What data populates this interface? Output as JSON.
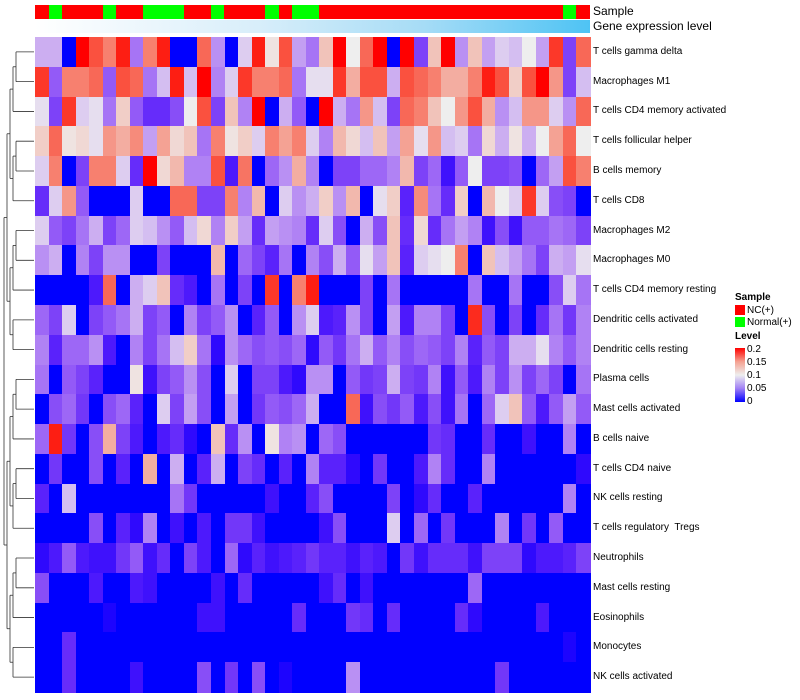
{
  "annotations": {
    "sample_label": "Sample",
    "gene_label": "Gene expression level",
    "samples": [
      "NC(+)",
      "Normal(+)",
      "NC(+)",
      "NC(+)",
      "NC(+)",
      "Normal(+)",
      "NC(+)",
      "NC(+)",
      "Normal(+)",
      "Normal(+)",
      "Normal(+)",
      "NC(+)",
      "NC(+)",
      "Normal(+)",
      "NC(+)",
      "NC(+)",
      "NC(+)",
      "Normal(+)",
      "NC(+)",
      "Normal(+)",
      "Normal(+)",
      "NC(+)",
      "NC(+)",
      "NC(+)",
      "NC(+)",
      "NC(+)",
      "NC(+)",
      "NC(+)",
      "NC(+)",
      "NC(+)",
      "NC(+)",
      "NC(+)",
      "NC(+)",
      "NC(+)",
      "NC(+)",
      "NC(+)",
      "NC(+)",
      "NC(+)",
      "NC(+)",
      "Normal(+)",
      "NC(+)"
    ]
  },
  "legend": {
    "sample_title": "Sample",
    "sample_items": [
      {
        "label": "NC(+)",
        "color": "#ff0000"
      },
      {
        "label": "Normal(+)",
        "color": "#00ff00"
      }
    ],
    "level_title": "Level",
    "level_ticks": [
      "0.2",
      "0.15",
      "0.1",
      "0.05",
      "0"
    ]
  },
  "chart_data": {
    "type": "heatmap",
    "title": "",
    "color_scale": {
      "min": 0,
      "mid": 0.1,
      "max": 0.2,
      "low": "#0000ff",
      "midcolor": "#eeeeee",
      "high": "#ff0000"
    },
    "rows": [
      "T cells gamma delta",
      "Macrophages M1",
      "T cells CD4 memory activated",
      "T cells follicular helper",
      "B cells memory",
      "T cells CD8",
      "Macrophages M2",
      "Macrophages M0",
      "T cells CD4 memory resting",
      "Dendritic cells activated",
      "Dendritic cells resting",
      "Plasma cells",
      "Mast cells activated",
      "B cells naive",
      "T cells CD4 naive",
      "NK cells resting",
      "T cells regulatory  Tregs",
      "Neutrophils",
      "Mast cells resting",
      "Eosinophils",
      "Monocytes",
      "NK cells activated"
    ],
    "values": [
      [
        0.08,
        0.08,
        0,
        0.2,
        0.17,
        0.15,
        0.19,
        0.06,
        0.15,
        0.19,
        0,
        0,
        0.16,
        0.07,
        0,
        0.09,
        0.19,
        0.105,
        0.17,
        0.075,
        0.06,
        0.12,
        0.2,
        0.1,
        0.16,
        0.2,
        0,
        0.2,
        0.04,
        0.12,
        0.2,
        0.07,
        0.12,
        0.075,
        0.09,
        0.085,
        0.1,
        0.075,
        0.18,
        0.04,
        0.16
      ],
      [
        0.18,
        0.05,
        0.15,
        0.15,
        0.16,
        0.05,
        0.17,
        0.16,
        0.06,
        0.085,
        0.19,
        0.085,
        0.2,
        0.065,
        0.09,
        0.18,
        0.15,
        0.15,
        0.16,
        0.06,
        0.095,
        0.095,
        0.18,
        0.13,
        0.17,
        0.17,
        0.08,
        0.17,
        0.16,
        0.15,
        0.13,
        0.13,
        0.15,
        0.19,
        0.17,
        0.115,
        0.17,
        0.2,
        0.14,
        0.04,
        0.085
      ],
      [
        0.095,
        0.04,
        0.18,
        0.09,
        0.095,
        0.06,
        0.115,
        0.05,
        0.03,
        0.03,
        0.045,
        0.1,
        0.17,
        0.04,
        0.12,
        0.065,
        0.2,
        0,
        0.08,
        0.05,
        0,
        0.2,
        0.08,
        0.06,
        0.14,
        0.085,
        0.04,
        0.16,
        0.15,
        0.12,
        0.1,
        0.14,
        0.17,
        0.13,
        0.07,
        0.085,
        0.14,
        0.14,
        0.09,
        0.07,
        0.16
      ],
      [
        0.115,
        0.16,
        0.105,
        0.11,
        0.095,
        0.14,
        0.13,
        0.145,
        0.075,
        0.135,
        0.11,
        0.12,
        0.06,
        0.15,
        0.105,
        0.115,
        0.09,
        0.15,
        0.135,
        0.15,
        0.09,
        0.065,
        0.125,
        0.11,
        0.085,
        0.12,
        0.075,
        0.135,
        0.095,
        0.14,
        0.085,
        0.09,
        0.06,
        0.11,
        0.08,
        0.105,
        0.08,
        0.1,
        0.135,
        0.16,
        0.1
      ],
      [
        0.09,
        0.15,
        0,
        0.04,
        0.15,
        0.15,
        0.09,
        0.03,
        0.2,
        0.11,
        0.125,
        0.065,
        0.065,
        0.17,
        0.02,
        0.155,
        0,
        0.055,
        0.07,
        0.13,
        0.065,
        0,
        0.04,
        0.04,
        0.055,
        0.055,
        0.065,
        0.125,
        0.04,
        0.055,
        0.015,
        0.05,
        0.1,
        0.04,
        0.04,
        0.045,
        0,
        0.055,
        0.075,
        0.17,
        0.15
      ],
      [
        0.03,
        0.09,
        0.14,
        0.05,
        0,
        0,
        0,
        0.09,
        0,
        0,
        0.16,
        0.16,
        0.04,
        0.04,
        0.15,
        0.065,
        0.125,
        0,
        0.09,
        0.07,
        0.08,
        0.115,
        0.07,
        0.125,
        0,
        0.095,
        0.115,
        0.025,
        0.145,
        0.06,
        0.03,
        0.115,
        0,
        0.125,
        0.1,
        0.09,
        0.18,
        0.09,
        0.045,
        0.04,
        0
      ],
      [
        0.09,
        0.05,
        0.04,
        0.06,
        0.08,
        0.04,
        0.055,
        0.09,
        0.085,
        0.07,
        0.05,
        0.085,
        0.11,
        0.065,
        0.115,
        0.075,
        0.03,
        0.075,
        0.07,
        0.065,
        0.03,
        0.09,
        0.045,
        0,
        0.08,
        0.045,
        0.12,
        0.03,
        0.11,
        0.03,
        0.06,
        0.075,
        0.065,
        0.015,
        0.045,
        0.015,
        0.05,
        0.05,
        0.06,
        0.055,
        0.04
      ],
      [
        0.07,
        0.08,
        0,
        0.065,
        0.04,
        0.07,
        0.07,
        0,
        0,
        0.04,
        0,
        0,
        0,
        0.125,
        0,
        0.055,
        0.04,
        0.025,
        0.06,
        0,
        0.065,
        0.045,
        0.08,
        0.05,
        0.095,
        0.075,
        0.12,
        0.025,
        0.09,
        0.095,
        0.1,
        0.15,
        0,
        0.12,
        0.085,
        0.075,
        0.06,
        0.04,
        0.08,
        0.075,
        0.095
      ],
      [
        0,
        0,
        0,
        0,
        0.02,
        0.16,
        0,
        0.08,
        0.09,
        0.12,
        0.03,
        0.02,
        0,
        0.06,
        0,
        0.04,
        0,
        0.18,
        0,
        0.15,
        0.19,
        0,
        0,
        0,
        0.04,
        0,
        0.06,
        0,
        0,
        0,
        0,
        0,
        0.06,
        0,
        0,
        0.06,
        0,
        0,
        0.045,
        0.09,
        0.06
      ],
      [
        0.055,
        0.04,
        0.09,
        0,
        0.04,
        0.05,
        0.06,
        0.08,
        0.04,
        0.05,
        0,
        0.065,
        0.04,
        0.05,
        0.07,
        0,
        0.025,
        0.05,
        0,
        0.07,
        0.09,
        0.02,
        0.025,
        0.07,
        0.04,
        0,
        0.075,
        0.02,
        0.065,
        0.065,
        0.04,
        0,
        0.185,
        0.045,
        0,
        0.04,
        0,
        0.03,
        0.06,
        0.035,
        0.065
      ],
      [
        0.065,
        0.025,
        0.055,
        0.055,
        0.07,
        0.02,
        0,
        0.065,
        0.04,
        0.06,
        0.085,
        0.115,
        0.06,
        0.01,
        0.07,
        0.055,
        0.045,
        0.05,
        0.045,
        0.055,
        0.01,
        0.05,
        0.035,
        0.06,
        0.08,
        0.05,
        0.065,
        0.045,
        0.055,
        0.05,
        0.04,
        0.065,
        0.025,
        0.05,
        0.04,
        0.08,
        0.08,
        0.095,
        0.065,
        0.05,
        0.065
      ],
      [
        0.06,
        0,
        0.05,
        0.04,
        0.025,
        0,
        0,
        0.105,
        0.015,
        0.04,
        0.05,
        0.07,
        0.045,
        0,
        0.09,
        0,
        0.04,
        0.04,
        0.02,
        0.01,
        0.07,
        0.07,
        0,
        0.05,
        0.035,
        0.04,
        0.08,
        0.04,
        0.035,
        0.065,
        0.015,
        0.05,
        0.02,
        0.065,
        0.04,
        0.07,
        0.04,
        0.055,
        0.04,
        0,
        0.06
      ],
      [
        0,
        0.045,
        0.055,
        0.035,
        0,
        0.045,
        0.055,
        0.025,
        0,
        0.09,
        0.04,
        0.075,
        0.045,
        0,
        0.075,
        0,
        0.035,
        0.05,
        0.045,
        0.055,
        0.08,
        0,
        0,
        0.16,
        0.015,
        0.045,
        0.035,
        0.05,
        0.02,
        0.045,
        0.015,
        0.06,
        0,
        0.055,
        0.09,
        0.12,
        0.05,
        0.02,
        0.05,
        0.075,
        0.05
      ],
      [
        0.055,
        0.19,
        0.035,
        0,
        0.045,
        0.13,
        0.04,
        0.02,
        0,
        0.02,
        0.03,
        0.01,
        0,
        0.12,
        0.03,
        0.07,
        0,
        0.105,
        0.065,
        0.07,
        0,
        0.055,
        0.045,
        0,
        0,
        0,
        0,
        0,
        0,
        0.035,
        0.03,
        0,
        0,
        0.03,
        0,
        0,
        0.015,
        0,
        0,
        0.065,
        0
      ],
      [
        0,
        0.035,
        0,
        0,
        0.045,
        0,
        0.025,
        0,
        0.13,
        0,
        0.08,
        0,
        0.025,
        0.08,
        0,
        0.04,
        0.03,
        0,
        0.025,
        0,
        0.065,
        0.025,
        0.025,
        0.01,
        0,
        0.035,
        0,
        0,
        0.02,
        0.065,
        0.03,
        0,
        0,
        0.065,
        0,
        0,
        0,
        0,
        0,
        0,
        0.01
      ],
      [
        0.025,
        0,
        0.085,
        0,
        0,
        0,
        0,
        0,
        0,
        0,
        0.06,
        0.035,
        0,
        0,
        0,
        0,
        0,
        0.015,
        0,
        0,
        0.025,
        0.045,
        0,
        0,
        0,
        0,
        0.04,
        0,
        0.01,
        0.03,
        0,
        0,
        0.025,
        0,
        0,
        0,
        0,
        0,
        0,
        0.065,
        0
      ],
      [
        0,
        0,
        0,
        0,
        0.045,
        0,
        0.025,
        0.01,
        0.065,
        0,
        0.015,
        0,
        0.02,
        0,
        0.035,
        0.035,
        0.015,
        0,
        0,
        0,
        0,
        0.015,
        0.045,
        0,
        0,
        0,
        0.09,
        0,
        0.055,
        0,
        0.035,
        0,
        0,
        0,
        0.065,
        0,
        0.035,
        0,
        0.05,
        0,
        0
      ],
      [
        0.01,
        0.02,
        0.05,
        0.02,
        0.015,
        0.015,
        0.035,
        0.05,
        0.015,
        0.03,
        0,
        0.04,
        0.02,
        0,
        0.055,
        0.01,
        0.025,
        0.015,
        0.02,
        0.025,
        0.035,
        0.025,
        0.025,
        0.015,
        0.025,
        0.02,
        0,
        0.035,
        0.015,
        0.03,
        0.03,
        0.03,
        0.015,
        0.04,
        0.04,
        0.04,
        0.01,
        0.02,
        0.02,
        0.025,
        0.04
      ],
      [
        0.045,
        0,
        0,
        0,
        0.02,
        0,
        0,
        0.02,
        0.015,
        0,
        0,
        0,
        0,
        0.015,
        0,
        0.03,
        0,
        0,
        0,
        0,
        0,
        0.015,
        0.03,
        0,
        0.015,
        0,
        0,
        0,
        0,
        0,
        0,
        0,
        0.055,
        0,
        0,
        0,
        0,
        0,
        0,
        0,
        0
      ],
      [
        0,
        0,
        0,
        0,
        0,
        0.005,
        0,
        0,
        0,
        0,
        0,
        0,
        0.015,
        0.015,
        0,
        0,
        0,
        0,
        0,
        0.03,
        0,
        0,
        0,
        0.035,
        0.03,
        0,
        0.03,
        0,
        0,
        0,
        0,
        0.03,
        0.01,
        0,
        0,
        0,
        0,
        0.02,
        0,
        0,
        0
      ],
      [
        0,
        0,
        0.03,
        0,
        0,
        0,
        0,
        0,
        0,
        0,
        0,
        0,
        0,
        0,
        0,
        0,
        0,
        0,
        0,
        0,
        0,
        0,
        0,
        0,
        0,
        0,
        0,
        0,
        0,
        0,
        0,
        0,
        0,
        0,
        0,
        0,
        0,
        0,
        0,
        0.005,
        0
      ],
      [
        0,
        0,
        0.03,
        0,
        0,
        0,
        0,
        0.015,
        0,
        0,
        0,
        0,
        0.045,
        0,
        0.035,
        0,
        0.045,
        0,
        0.005,
        0,
        0,
        0,
        0,
        0.07,
        0,
        0,
        0,
        0,
        0,
        0,
        0,
        0,
        0,
        0,
        0.035,
        0,
        0,
        0,
        0,
        0,
        0
      ]
    ]
  }
}
